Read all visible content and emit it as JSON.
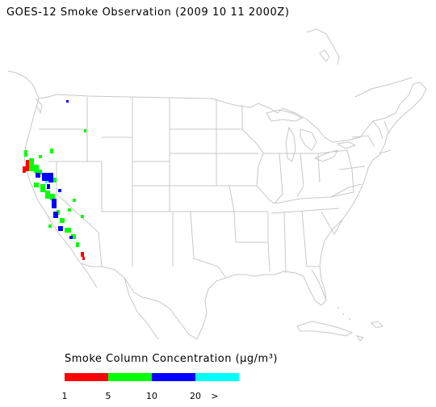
{
  "title": "GOES-12 Smoke Observation (2009 10 11  2000Z)",
  "legend": {
    "title": "Smoke Column Concentration (μg/m³)",
    "bins": [
      {
        "color": "#ff0000"
      },
      {
        "color": "#00ff00"
      },
      {
        "color": "#0000ff"
      },
      {
        "color": "#00ffff"
      }
    ],
    "ticks": [
      "1",
      "5",
      "10",
      "20",
      ">"
    ]
  },
  "map": {
    "region": "Continental United States",
    "boundary_color": "#c8c8c8",
    "smoke_region": "West Coast (California, Oregon, Nevada)"
  }
}
